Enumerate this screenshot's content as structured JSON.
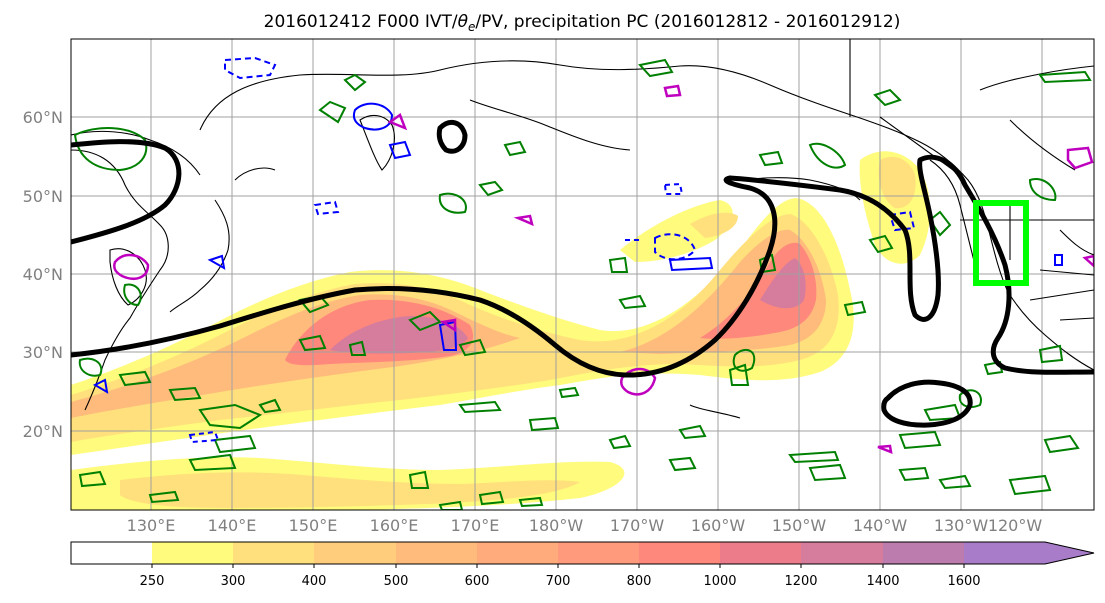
{
  "title": {
    "prefix": "2016012412 F000 IVT/",
    "theta": "θ",
    "theta_sub": "e",
    "suffix": "/PV, precipitation PC (2016012812 - 2016012912)"
  },
  "map": {
    "lat_labels": [
      "60°N",
      "50°N",
      "40°N",
      "30°N",
      "20°N"
    ],
    "lon_labels": [
      "130°E",
      "140°E",
      "150°E",
      "160°E",
      "170°E",
      "180°W",
      "170°W",
      "160°W",
      "150°W",
      "140°W",
      "130°W",
      "120°W"
    ]
  },
  "colorbar": {
    "ticks": [
      "250",
      "300",
      "400",
      "500",
      "600",
      "700",
      "800",
      "1000",
      "1200",
      "1400",
      "1600"
    ],
    "colors": [
      "#ffffff",
      "#fffb7c",
      "#ffe07c",
      "#ffcd7c",
      "#ffbb7c",
      "#ffab7c",
      "#ff9a7c",
      "#ff887c",
      "#ec7c8a",
      "#d67c9c",
      "#bd7cae",
      "#a87cc8"
    ]
  },
  "colors": {
    "pv_contour": "#000000",
    "green_contour": "#008000",
    "blue_contour": "#0000ff",
    "magenta_contour": "#bf00bf",
    "target_box": "#00ff00",
    "coast": "#000000"
  }
}
